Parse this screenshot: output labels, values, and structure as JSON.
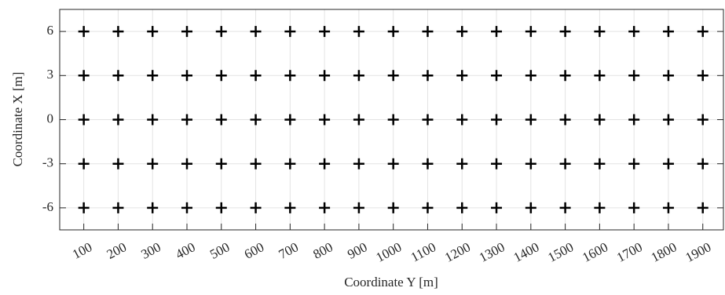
{
  "chart_data": {
    "type": "scatter",
    "marker": "+",
    "color": "#000000",
    "xlabel": "Coordinate Y [m]",
    "ylabel": "Coordinate X [m]",
    "x": [
      100,
      200,
      300,
      400,
      500,
      600,
      700,
      800,
      900,
      1000,
      1100,
      1200,
      1300,
      1400,
      1500,
      1600,
      1700,
      1800,
      1900
    ],
    "series": [
      {
        "values": [
          6,
          6,
          6,
          6,
          6,
          6,
          6,
          6,
          6,
          6,
          6,
          6,
          6,
          6,
          6,
          6,
          6,
          6,
          6
        ]
      },
      {
        "values": [
          3,
          3,
          3,
          3,
          3,
          3,
          3,
          3,
          3,
          3,
          3,
          3,
          3,
          3,
          3,
          3,
          3,
          3,
          3
        ]
      },
      {
        "values": [
          0,
          0,
          0,
          0,
          0,
          0,
          0,
          0,
          0,
          0,
          0,
          0,
          0,
          0,
          0,
          0,
          0,
          0,
          0
        ]
      },
      {
        "values": [
          -3,
          -3,
          -3,
          -3,
          -3,
          -3,
          -3,
          -3,
          -3,
          -3,
          -3,
          -3,
          -3,
          -3,
          -3,
          -3,
          -3,
          -3,
          -3
        ]
      },
      {
        "values": [
          -6,
          -6,
          -6,
          -6,
          -6,
          -6,
          -6,
          -6,
          -6,
          -6,
          -6,
          -6,
          -6,
          -6,
          -6,
          -6,
          -6,
          -6,
          -6
        ]
      }
    ],
    "xlim": [
      30,
      1960
    ],
    "ylim": [
      -7.5,
      7.5
    ],
    "xticks": [
      100,
      200,
      300,
      400,
      500,
      600,
      700,
      800,
      900,
      1000,
      1100,
      1200,
      1300,
      1400,
      1500,
      1600,
      1700,
      1800,
      1900
    ],
    "yticks": [
      -6,
      -3,
      0,
      3,
      6
    ],
    "grid": true
  }
}
